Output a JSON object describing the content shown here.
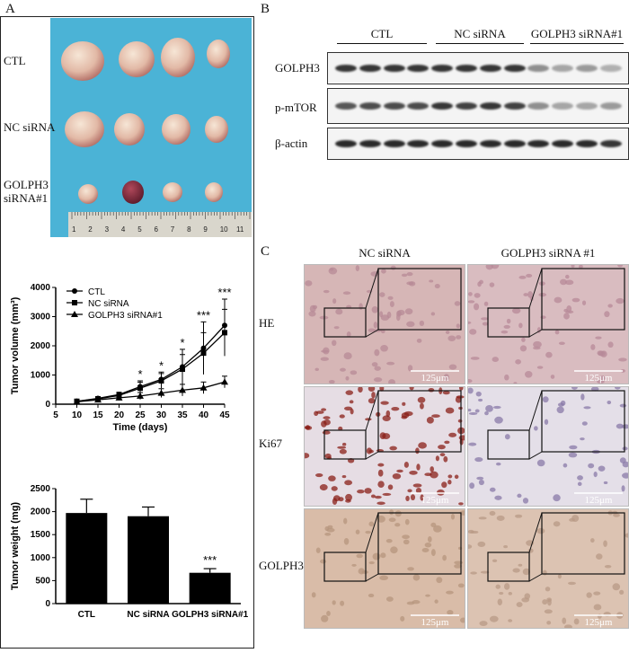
{
  "panels": {
    "a": "A",
    "b": "B",
    "c": "C"
  },
  "photo": {
    "rows": [
      "CTL",
      "NC siRNA",
      "GOLPH3 siRNA#1"
    ],
    "ruler_numbers": [
      "1",
      "2",
      "3",
      "4",
      "5",
      "6",
      "7",
      "8",
      "9",
      "10",
      "11"
    ]
  },
  "western": {
    "groups": [
      "CTL",
      "NC siRNA",
      "GOLPH3 siRNA#1"
    ],
    "rows": [
      "GOLPH3",
      "p-mTOR",
      "β-actin"
    ]
  },
  "ihc": {
    "columns": [
      "NC siRNA",
      "GOLPH3 siRNA #1"
    ],
    "rows": [
      "HE",
      "Ki67",
      "GOLPH3"
    ],
    "scale_bar": "125μm"
  },
  "chart_data": [
    {
      "type": "line",
      "xlabel": "Time (days)",
      "ylabel": "Tumor volume (mm³)",
      "xlim": [
        5,
        45
      ],
      "ylim": [
        0,
        4000
      ],
      "x_ticks": [
        "5",
        "10",
        "15",
        "20",
        "25",
        "30",
        "35",
        "40",
        "45"
      ],
      "y_ticks": [
        "0",
        "1000",
        "2000",
        "3000",
        "4000"
      ],
      "x": [
        10,
        15,
        20,
        25,
        30,
        35,
        40,
        45
      ],
      "legend": "top-left",
      "series": [
        {
          "name": "CTL",
          "values": [
            100,
            200,
            330,
            600,
            850,
            1280,
            1920,
            2700
          ],
          "errors": [
            30,
            60,
            80,
            200,
            250,
            600,
            900,
            900
          ]
        },
        {
          "name": "NC siRNA",
          "values": [
            100,
            180,
            300,
            550,
            800,
            1200,
            1750,
            2450
          ],
          "errors": [
            30,
            50,
            80,
            200,
            250,
            500,
            700,
            800
          ]
        },
        {
          "name": "GOLPH3 siRNA#1",
          "values": [
            80,
            150,
            220,
            280,
            380,
            480,
            560,
            760
          ],
          "errors": [
            20,
            40,
            60,
            120,
            150,
            200,
            200,
            200
          ]
        }
      ],
      "annotations": [
        {
          "x": 25,
          "text": "*"
        },
        {
          "x": 30,
          "text": "*"
        },
        {
          "x": 35,
          "text": "*"
        },
        {
          "x": 40,
          "text": "***"
        },
        {
          "x": 45,
          "text": "***"
        }
      ]
    },
    {
      "type": "bar",
      "categories": [
        "CTL",
        "NC siRNA",
        "GOLPH3 siRNA#1"
      ],
      "values": [
        1970,
        1900,
        670
      ],
      "errors": [
        300,
        200,
        90
      ],
      "ylabel": "Tumor weight (mg)",
      "ylim": [
        0,
        2500
      ],
      "y_ticks": [
        "0",
        "500",
        "1000",
        "1500",
        "2000",
        "2500"
      ],
      "annotations": [
        {
          "category": "GOLPH3 siRNA#1",
          "text": "***"
        }
      ]
    }
  ]
}
